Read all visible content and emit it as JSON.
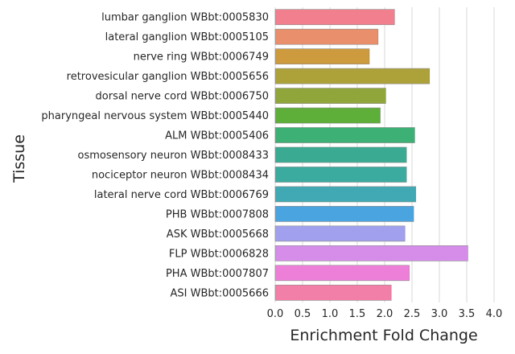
{
  "chart_data": {
    "type": "bar",
    "orientation": "horizontal",
    "xlabel": "Enrichment Fold Change",
    "ylabel": "Tissue",
    "xlim": [
      0.0,
      4.0
    ],
    "xticks": [
      "0.0",
      "0.5",
      "1.0",
      "1.5",
      "2.0",
      "2.5",
      "3.0",
      "3.5",
      "4.0"
    ],
    "grid": "vertical",
    "categories": [
      "lumbar ganglion WBbt:0005830",
      "lateral ganglion WBbt:0005105",
      "nerve ring WBbt:0006749",
      "retrovesicular ganglion WBbt:0005656",
      "dorsal nerve cord WBbt:0006750",
      "pharyngeal nervous system WBbt:0005440",
      "ALM WBbt:0005406",
      "osmosensory neuron WBbt:0008433",
      "nociceptor neuron WBbt:0008434",
      "lateral nerve cord WBbt:0006769",
      "PHB WBbt:0007808",
      "ASK WBbt:0005668",
      "FLP WBbt:0006828",
      "PHA WBbt:0007807",
      "ASI WBbt:0005666"
    ],
    "values": [
      2.18,
      1.88,
      1.72,
      2.82,
      2.02,
      1.92,
      2.55,
      2.4,
      2.4,
      2.57,
      2.53,
      2.37,
      3.52,
      2.45,
      2.12
    ],
    "colors": [
      "#f27f8d",
      "#e98f6b",
      "#cd9a3d",
      "#ada13a",
      "#90a53a",
      "#5eae3a",
      "#3db075",
      "#3aab92",
      "#3cab9f",
      "#40a9b3",
      "#4aa4df",
      "#a0a0ee",
      "#d58de9",
      "#ee7fd8",
      "#f27fa8"
    ]
  }
}
